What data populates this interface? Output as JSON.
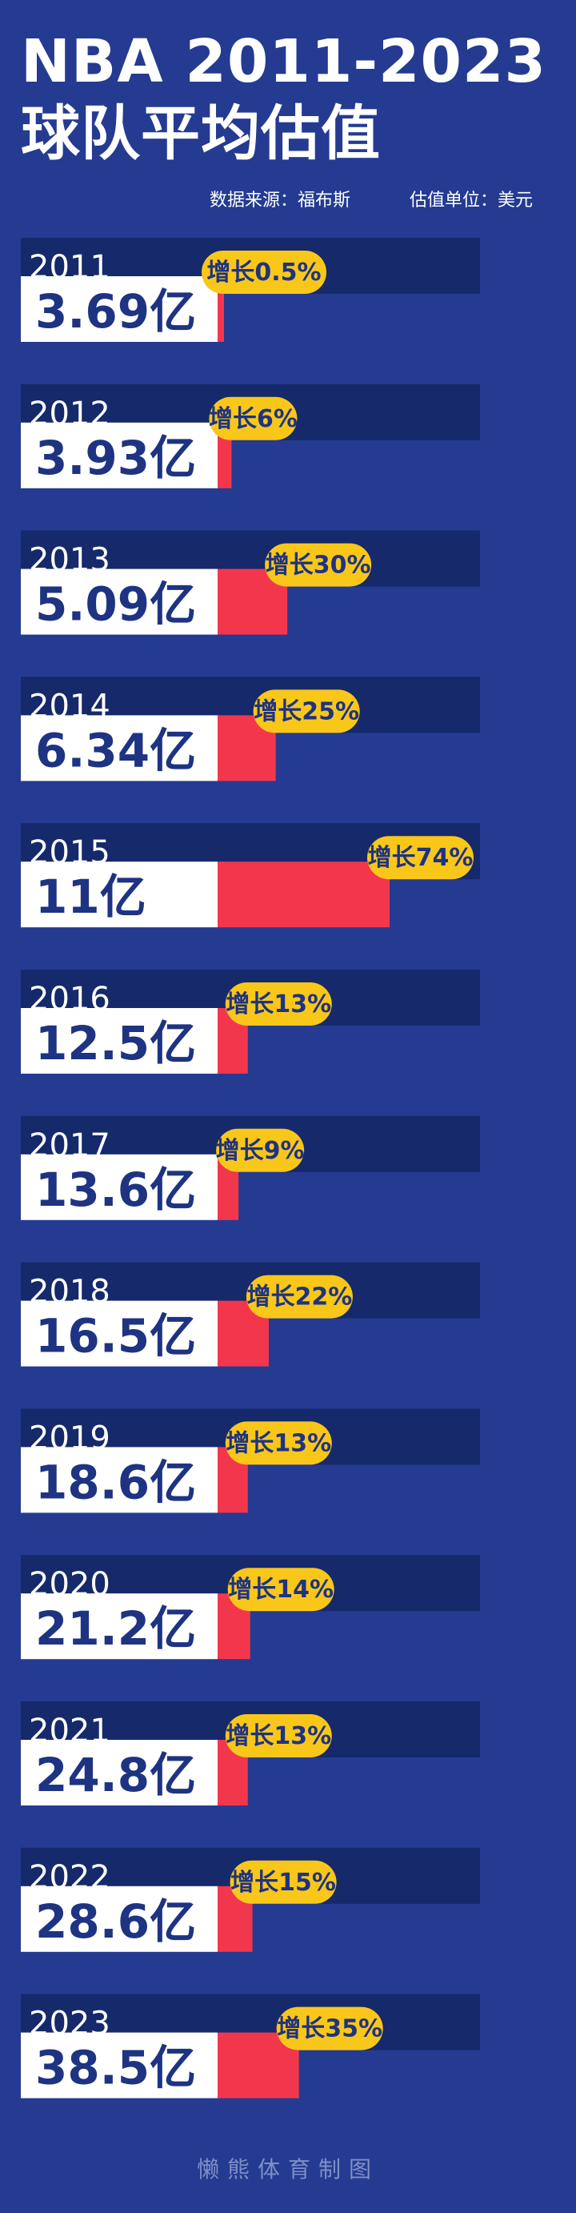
{
  "title_line1": "NBA 2011-2023",
  "title_line2": "球队平均估值",
  "source_note": "数据来源：福布斯",
  "unit_note": "估值单位：美元",
  "footer": "懒熊体育制图",
  "colors": {
    "background": "#243b91",
    "year_band": "#15296b",
    "value_box": "#ffffff",
    "growth_bar": "#f2374d",
    "badge": "#f9c71a",
    "value_text": "#1e3382",
    "badge_text": "#1e3382"
  },
  "chart_data": {
    "type": "bar",
    "title": "NBA 2011-2023 球队平均估值",
    "unit": "亿",
    "categories": [
      "2011",
      "2012",
      "2013",
      "2014",
      "2015",
      "2016",
      "2017",
      "2018",
      "2019",
      "2020",
      "2021",
      "2022",
      "2023"
    ],
    "values": [
      3.69,
      3.93,
      5.09,
      6.34,
      11,
      12.5,
      13.6,
      16.5,
      18.6,
      21.2,
      24.8,
      28.6,
      38.5
    ],
    "value_labels": [
      "3.69亿",
      "3.93亿",
      "5.09亿",
      "6.34亿",
      "11亿",
      "12.5亿",
      "13.6亿",
      "16.5亿",
      "18.6亿",
      "21.2亿",
      "24.8亿",
      "28.6亿",
      "38.5亿"
    ],
    "growth_percent": [
      0.5,
      6,
      30,
      25,
      74,
      13,
      9,
      22,
      13,
      14,
      13,
      15,
      35
    ],
    "growth_labels": [
      "增长0.5%",
      "增长6%",
      "增长30%",
      "增长25%",
      "增长74%",
      "增长13%",
      "增长9%",
      "增长22%",
      "增长13%",
      "增长14%",
      "增长13%",
      "增长15%",
      "增长35%"
    ]
  }
}
